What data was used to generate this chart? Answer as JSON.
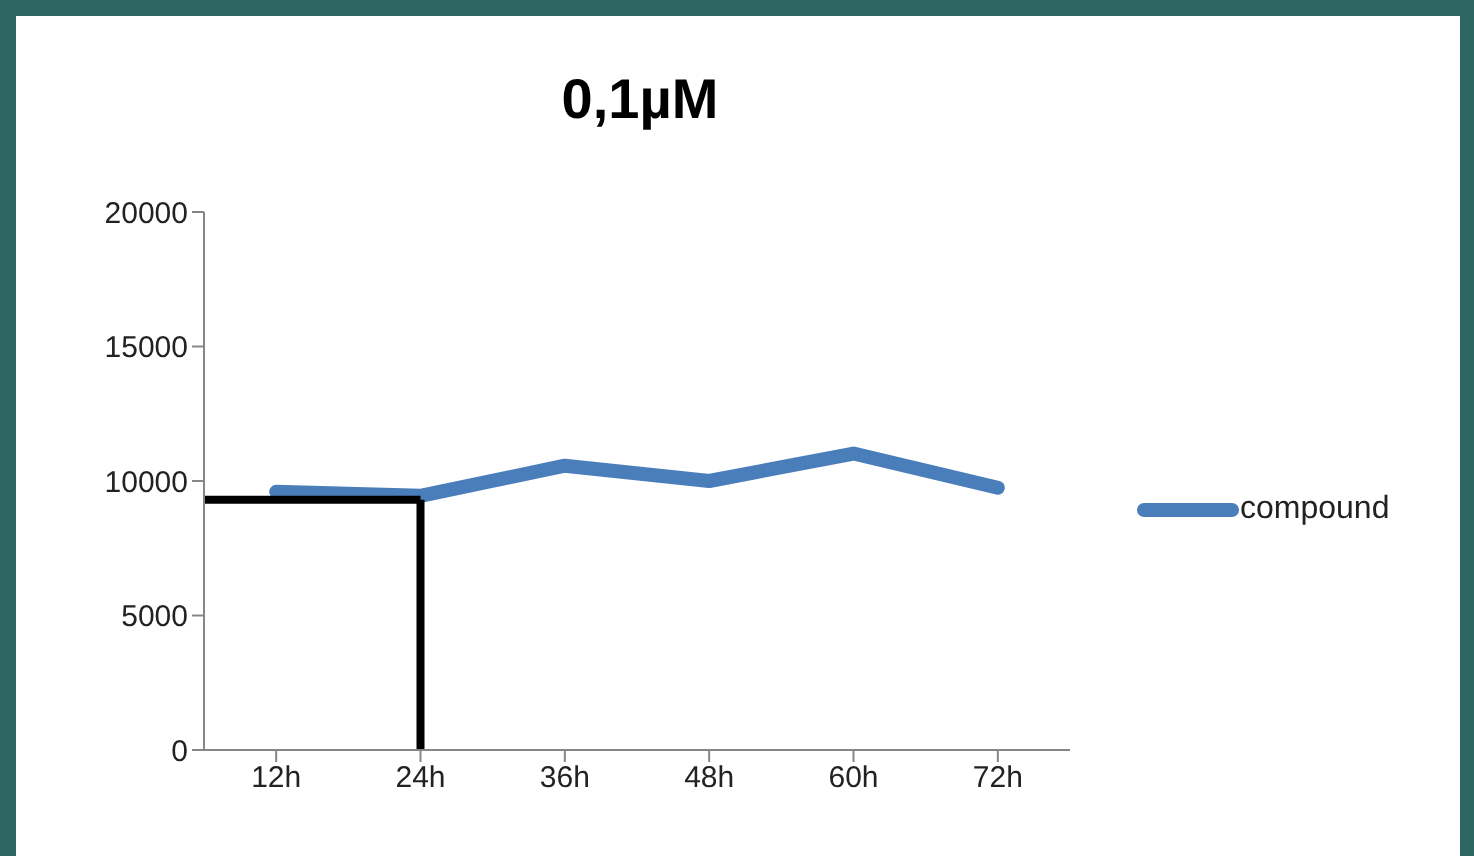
{
  "chart_data": {
    "type": "line",
    "title": "0,1µM",
    "categories": [
      "12h",
      "24h",
      "36h",
      "48h",
      "60h",
      "72h"
    ],
    "series": [
      {
        "name": "compound",
        "color": "#4a7ebb",
        "values": [
          9600,
          9450,
          10570,
          10000,
          11020,
          9750
        ]
      }
    ],
    "ylim": [
      0,
      20000
    ],
    "yticks": [
      0,
      5000,
      10000,
      15000,
      20000
    ],
    "grid": false,
    "legend": "right",
    "marker": "none",
    "line_style": "solid",
    "ref_lines": [
      {
        "axis": "y",
        "value": 9300,
        "color": "#000000"
      },
      {
        "axis": "x",
        "value": "24h",
        "color": "#000000"
      }
    ]
  }
}
